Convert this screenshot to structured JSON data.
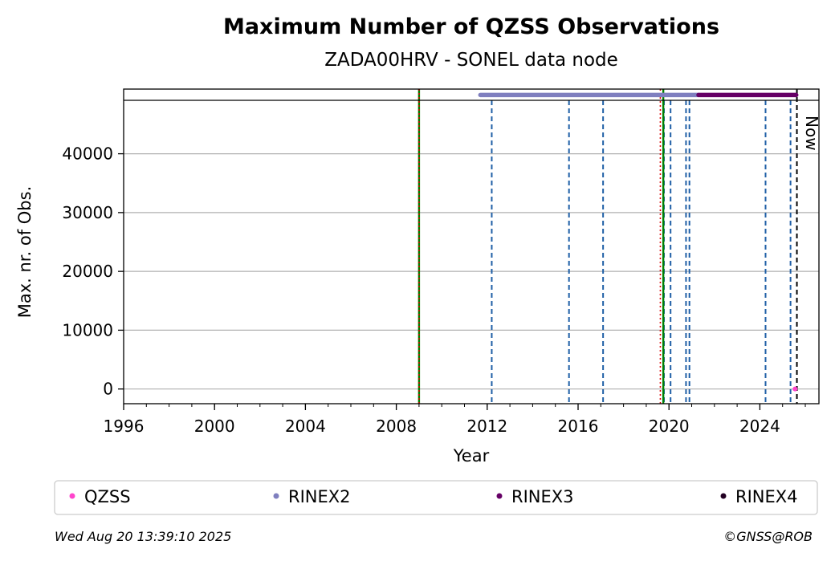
{
  "chart_data": {
    "type": "scatter",
    "title": "Maximum Number of QZSS Observations",
    "subtitle": "ZADA00HRV - SONEL data node",
    "xlabel": "Year",
    "ylabel": "Max. nr. of Obs.",
    "xlim": [
      1996.0,
      2026.6
    ],
    "ylim": [
      -2500,
      51000
    ],
    "x_ticks": [
      1996,
      2000,
      2004,
      2008,
      2012,
      2016,
      2020,
      2024
    ],
    "y_ticks": [
      0,
      10000,
      20000,
      30000,
      40000
    ],
    "grid": "horizontal",
    "now_label": "Now",
    "now_x": 2025.63,
    "series": [
      {
        "name": "QZSS",
        "color": "#ff44cc",
        "kind": "points",
        "points": [
          [
            2025.55,
            0
          ]
        ]
      },
      {
        "name": "RINEX2",
        "color": "#7f7fbf",
        "kind": "segment",
        "x": [
          2011.7,
          2021.3
        ],
        "y": 50000
      },
      {
        "name": "RINEX3",
        "color": "#660066",
        "kind": "segment",
        "x": [
          2021.3,
          2025.6
        ],
        "y": 50000
      },
      {
        "name": "RINEX4",
        "color": "#220022",
        "kind": "points",
        "points": []
      }
    ],
    "event_lines": {
      "blue_dashed": [
        2012.2,
        2015.6,
        2017.1,
        2019.78,
        2020.07,
        2020.75,
        2020.9,
        2024.25,
        2025.35
      ],
      "green": [
        2009.0,
        2019.75
      ],
      "red_dotted": [
        2009.0,
        2019.62
      ]
    },
    "colors": {
      "blue_dashed": "#1f5fa6",
      "green": "#008000",
      "red_dotted": "#dd0000",
      "grid": "#b0b0b0"
    },
    "legend_position": "bottom"
  },
  "footer": {
    "timestamp": "Wed Aug 20 13:39:10 2025",
    "credit": "©GNSS@ROB"
  }
}
